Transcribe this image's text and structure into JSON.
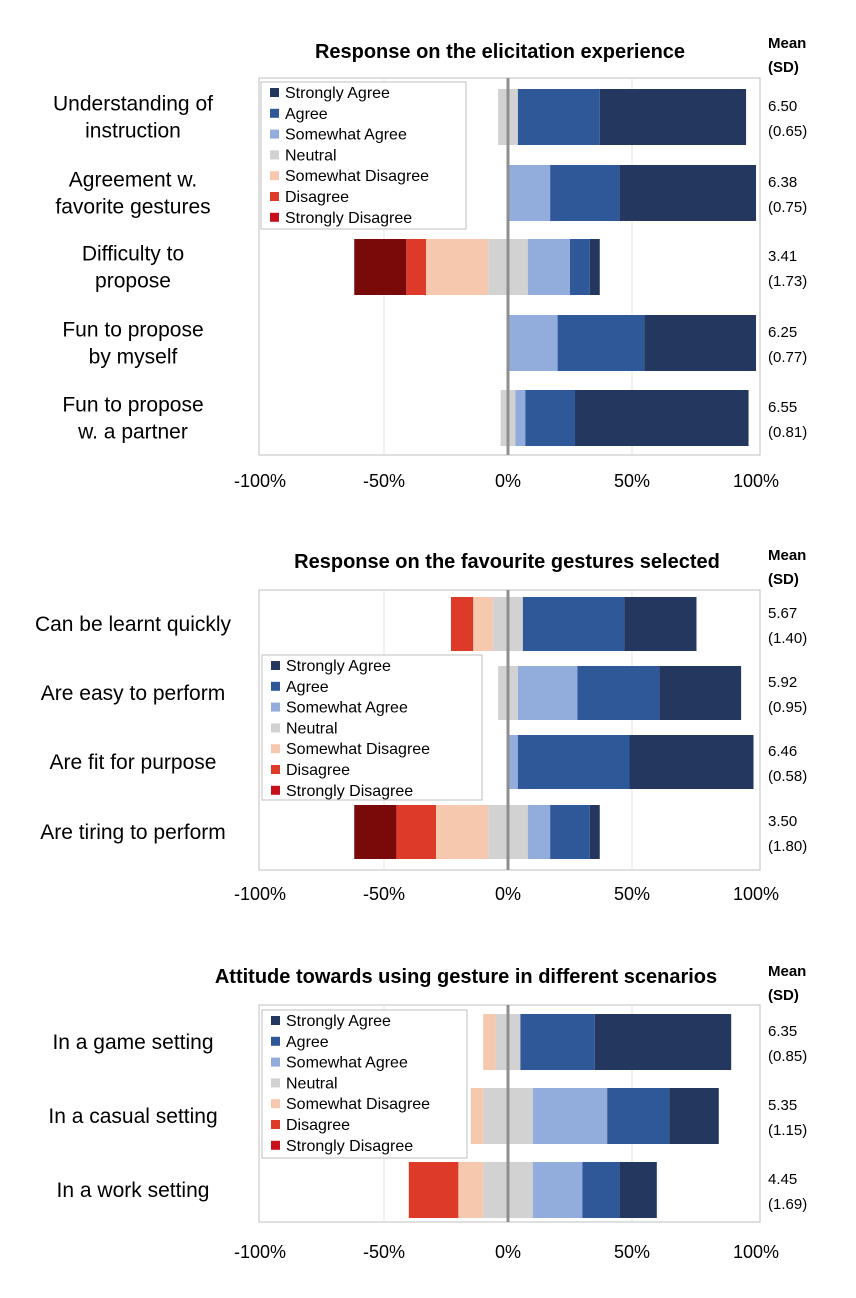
{
  "colors": {
    "Strongly Agree": "#23375f",
    "Agree": "#2f5899",
    "Somewhat Agree": "#92acdc",
    "Neutral": "#d2d2d2",
    "Somewhat Disagree": "#f6c8ad",
    "Disagree": "#dd3a2a",
    "Strongly Disagree": "#7a0a0a",
    "Strongly Disagree legend": "#c8101c",
    "frame": "#bfbfbf",
    "grid": "#e3e3e3",
    "zero_line": "#8f8f8f"
  },
  "chart_data": [
    {
      "type": "bar",
      "stacked": "diverging",
      "orientation": "horizontal",
      "title": "Response on the elicitation experience",
      "mean_header": [
        "Mean",
        "(SD)"
      ],
      "xlim": [
        -100,
        100
      ],
      "xticks": [
        "-100%",
        "-50%",
        "0%",
        "50%",
        "100%"
      ],
      "legend_position": "top-left",
      "legend": [
        "Strongly Agree",
        "Agree",
        "Somewhat Agree",
        "Neutral",
        "Somewhat Disagree",
        "Disagree",
        "Strongly Disagree"
      ],
      "rows": [
        {
          "label": [
            "Understanding of",
            "instruction"
          ],
          "mean": "6.50",
          "sd": "(0.65)",
          "segments": [
            {
              "level": "Neutral",
              "from": -4,
              "to": 4
            },
            {
              "level": "Agree",
              "from": 4,
              "to": 37
            },
            {
              "level": "Strongly Agree",
              "from": 37,
              "to": 96
            }
          ]
        },
        {
          "label": [
            "Agreement w.",
            "favorite gestures"
          ],
          "mean": "6.38",
          "sd": "(0.75)",
          "segments": [
            {
              "level": "Somewhat Agree",
              "from": 0,
              "to": 17
            },
            {
              "level": "Agree",
              "from": 17,
              "to": 45
            },
            {
              "level": "Strongly Agree",
              "from": 45,
              "to": 100
            }
          ]
        },
        {
          "label": [
            "Difficulty to",
            "propose"
          ],
          "mean": "3.41",
          "sd": "(1.73)",
          "segments": [
            {
              "level": "Strongly Disagree",
              "from": -62,
              "to": -41
            },
            {
              "level": "Disagree",
              "from": -41,
              "to": -33
            },
            {
              "level": "Somewhat Disagree",
              "from": -33,
              "to": -8
            },
            {
              "level": "Neutral",
              "from": -8,
              "to": 8
            },
            {
              "level": "Somewhat Agree",
              "from": 8,
              "to": 25
            },
            {
              "level": "Agree",
              "from": 25,
              "to": 33
            },
            {
              "level": "Strongly Agree",
              "from": 33,
              "to": 37
            }
          ]
        },
        {
          "label": [
            "Fun to propose",
            "by myself"
          ],
          "mean": "6.25",
          "sd": "(0.77)",
          "segments": [
            {
              "level": "Somewhat Agree",
              "from": 0,
              "to": 20
            },
            {
              "level": "Agree",
              "from": 20,
              "to": 55
            },
            {
              "level": "Strongly Agree",
              "from": 55,
              "to": 100
            }
          ]
        },
        {
          "label": [
            "Fun to propose",
            "w. a partner"
          ],
          "mean": "6.55",
          "sd": "(0.81)",
          "segments": [
            {
              "level": "Neutral",
              "from": -3,
              "to": 3
            },
            {
              "level": "Somewhat Agree",
              "from": 3,
              "to": 7
            },
            {
              "level": "Agree",
              "from": 7,
              "to": 27
            },
            {
              "level": "Strongly Agree",
              "from": 27,
              "to": 97
            }
          ]
        }
      ]
    },
    {
      "type": "bar",
      "stacked": "diverging",
      "orientation": "horizontal",
      "title": "Response on the favourite gestures selected",
      "mean_header": [
        "Mean",
        "(SD)"
      ],
      "xlim": [
        -100,
        100
      ],
      "xticks": [
        "-100%",
        "-50%",
        "0%",
        "50%",
        "100%"
      ],
      "legend_position": "middle-left",
      "legend": [
        "Strongly Agree",
        "Agree",
        "Somewhat Agree",
        "Neutral",
        "Somewhat Disagree",
        "Disagree",
        "Strongly Disagree"
      ],
      "rows": [
        {
          "label": [
            "Can be learnt quickly"
          ],
          "mean": "5.67",
          "sd": "(1.40)",
          "segments": [
            {
              "level": "Disagree",
              "from": -23,
              "to": -14
            },
            {
              "level": "Somewhat Disagree",
              "from": -14,
              "to": -6
            },
            {
              "level": "Neutral",
              "from": -6,
              "to": 6
            },
            {
              "level": "Agree",
              "from": 6,
              "to": 47
            },
            {
              "level": "Strongly Agree",
              "from": 47,
              "to": 76
            }
          ]
        },
        {
          "label": [
            "Are easy to perform"
          ],
          "mean": "5.92",
          "sd": "(0.95)",
          "segments": [
            {
              "level": "Neutral",
              "from": -4,
              "to": 4
            },
            {
              "level": "Somewhat Agree",
              "from": 4,
              "to": 28
            },
            {
              "level": "Agree",
              "from": 28,
              "to": 61
            },
            {
              "level": "Strongly Agree",
              "from": 61,
              "to": 94
            }
          ]
        },
        {
          "label": [
            "Are fit for purpose"
          ],
          "mean": "6.46",
          "sd": "(0.58)",
          "segments": [
            {
              "level": "Somewhat Agree",
              "from": 0,
              "to": 4
            },
            {
              "level": "Agree",
              "from": 4,
              "to": 49
            },
            {
              "level": "Strongly Agree",
              "from": 49,
              "to": 99
            }
          ]
        },
        {
          "label": [
            "Are tiring to perform"
          ],
          "mean": "3.50",
          "sd": "(1.80)",
          "segments": [
            {
              "level": "Strongly Disagree",
              "from": -62,
              "to": -45
            },
            {
              "level": "Disagree",
              "from": -45,
              "to": -29
            },
            {
              "level": "Somewhat Disagree",
              "from": -29,
              "to": -8
            },
            {
              "level": "Neutral",
              "from": -8,
              "to": 8
            },
            {
              "level": "Somewhat Agree",
              "from": 8,
              "to": 17
            },
            {
              "level": "Agree",
              "from": 17,
              "to": 33
            },
            {
              "level": "Strongly Agree",
              "from": 33,
              "to": 37
            }
          ]
        }
      ]
    },
    {
      "type": "bar",
      "stacked": "diverging",
      "orientation": "horizontal",
      "title": "Attitude towards using gesture in different scenarios",
      "mean_header": [
        "Mean",
        "(SD)"
      ],
      "xlim": [
        -100,
        100
      ],
      "xticks": [
        "-100%",
        "-50%",
        "0%",
        "50%",
        "100%"
      ],
      "legend_position": "top-left",
      "legend": [
        "Strongly Agree",
        "Agree",
        "Somewhat Agree",
        "Neutral",
        "Somewhat Disagree",
        "Disagree",
        "Strongly Disagree"
      ],
      "rows": [
        {
          "label": [
            "In a game setting"
          ],
          "mean": "6.35",
          "sd": "(0.85)",
          "segments": [
            {
              "level": "Somewhat Disagree",
              "from": -10,
              "to": -5
            },
            {
              "level": "Neutral",
              "from": -5,
              "to": 5
            },
            {
              "level": "Agree",
              "from": 5,
              "to": 35
            },
            {
              "level": "Strongly Agree",
              "from": 35,
              "to": 90
            }
          ]
        },
        {
          "label": [
            "In a casual setting"
          ],
          "mean": "5.35",
          "sd": "(1.15)",
          "segments": [
            {
              "level": "Somewhat Disagree",
              "from": -15,
              "to": -10
            },
            {
              "level": "Neutral",
              "from": -10,
              "to": 10
            },
            {
              "level": "Somewhat Agree",
              "from": 10,
              "to": 40
            },
            {
              "level": "Agree",
              "from": 40,
              "to": 65
            },
            {
              "level": "Strongly Agree",
              "from": 65,
              "to": 85
            }
          ]
        },
        {
          "label": [
            "In a work setting"
          ],
          "mean": "4.45",
          "sd": "(1.69)",
          "segments": [
            {
              "level": "Disagree",
              "from": -40,
              "to": -20
            },
            {
              "level": "Somewhat Disagree",
              "from": -20,
              "to": -10
            },
            {
              "level": "Neutral",
              "from": -10,
              "to": 10
            },
            {
              "level": "Somewhat Agree",
              "from": 10,
              "to": 30
            },
            {
              "level": "Agree",
              "from": 30,
              "to": 45
            },
            {
              "level": "Strongly Agree",
              "from": 45,
              "to": 60
            }
          ]
        }
      ]
    }
  ]
}
